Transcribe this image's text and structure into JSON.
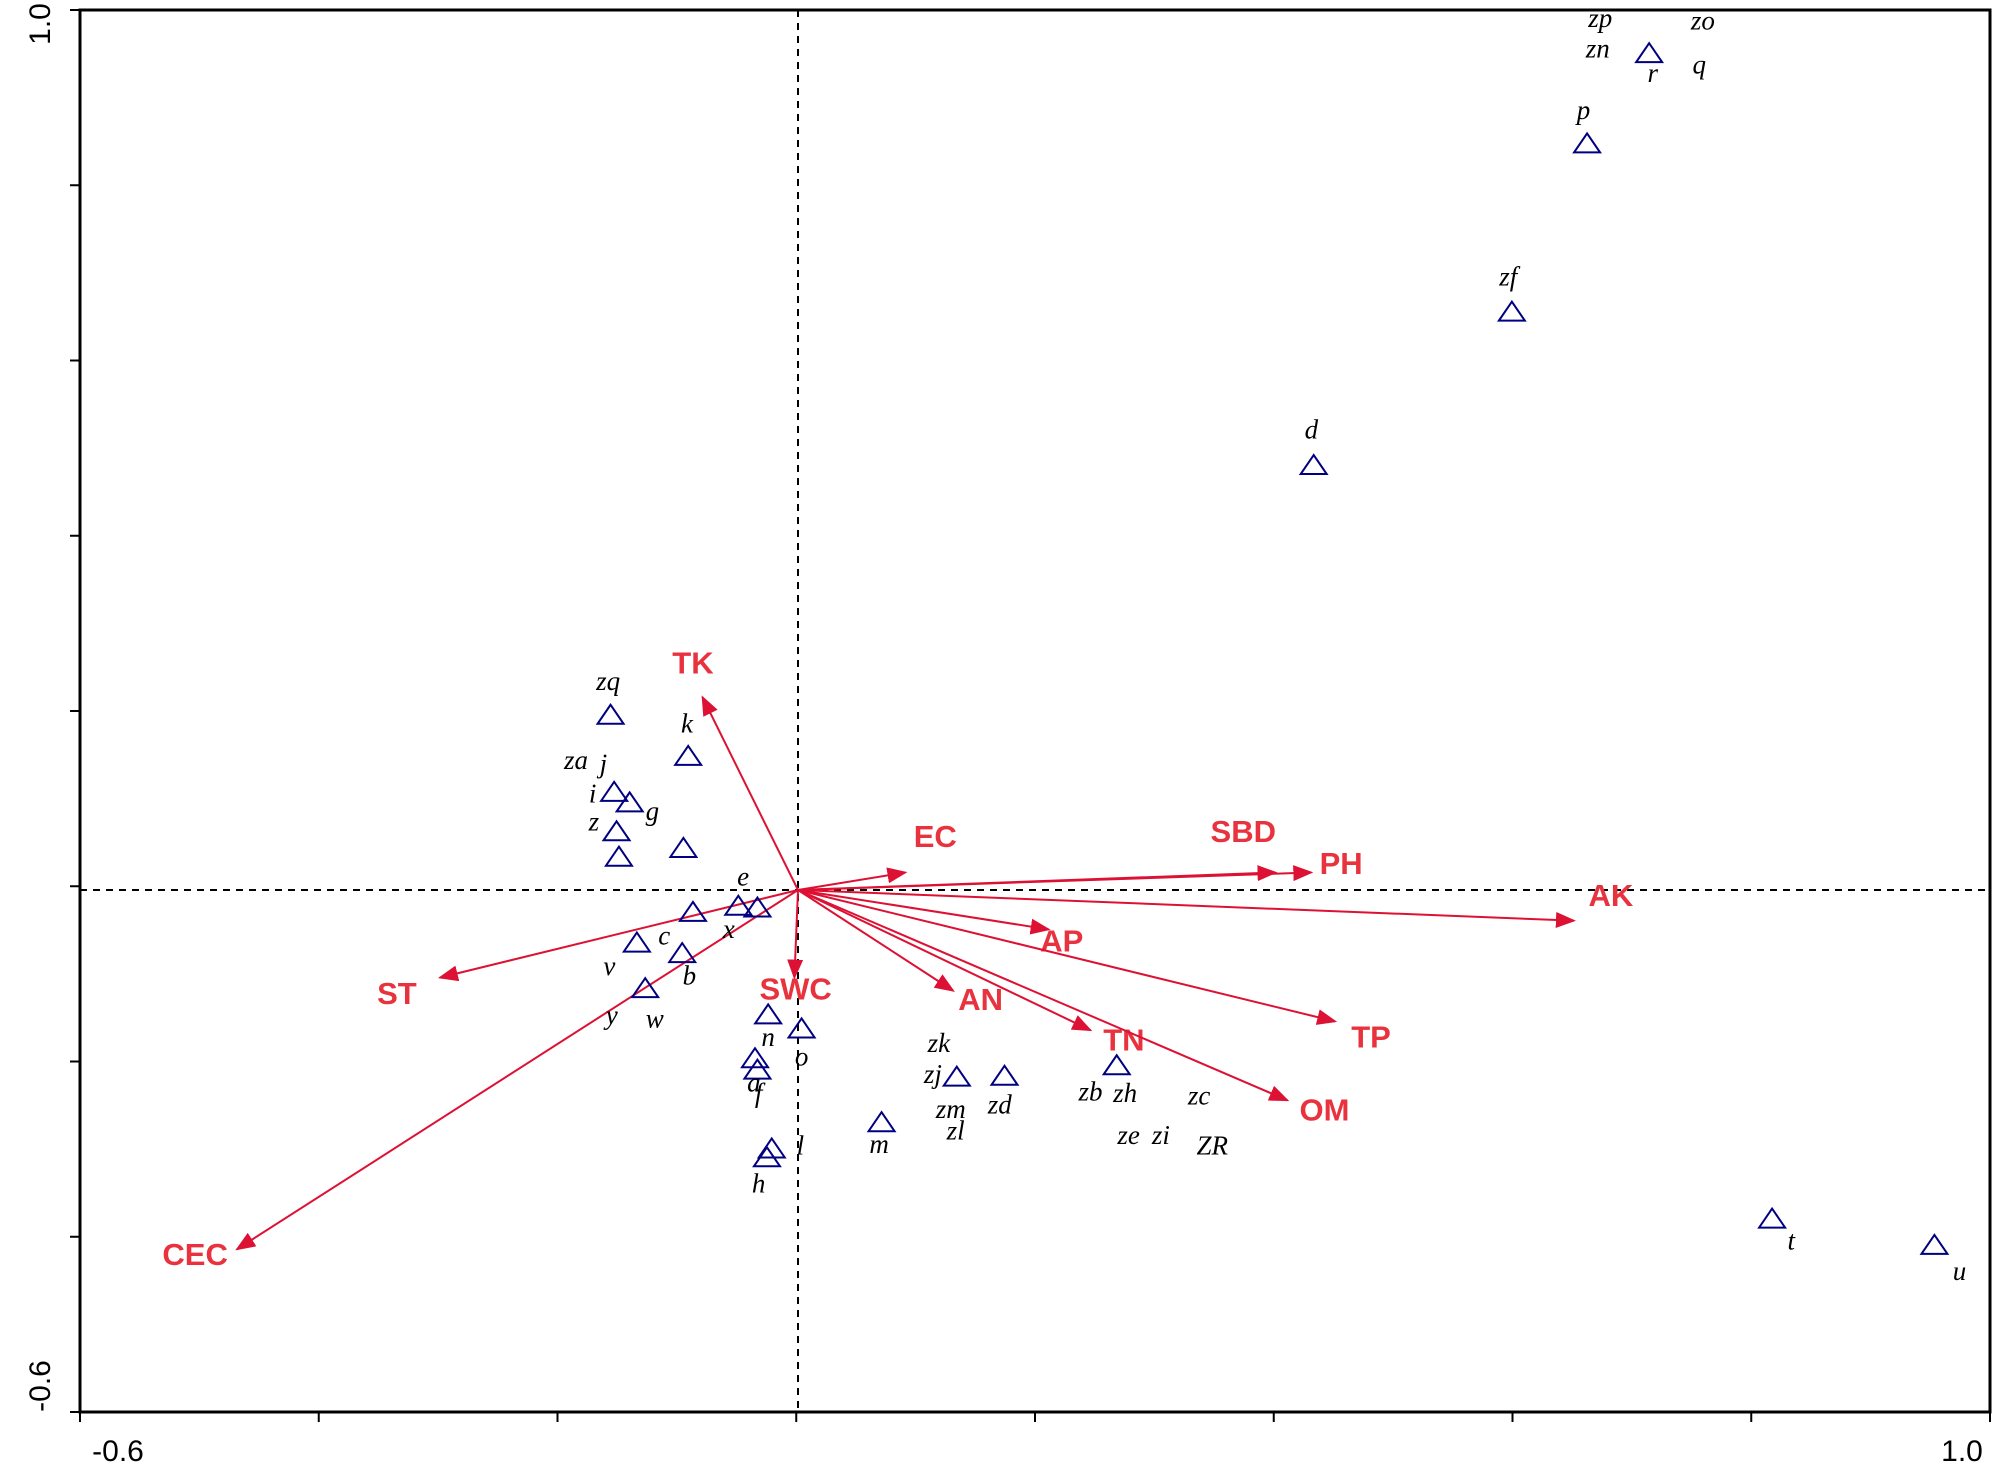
{
  "colors": {
    "arrow": "#dd1133",
    "site_marker": "#000080",
    "axis": "#000000",
    "env_label": "#e8333f"
  },
  "chart_data": {
    "type": "scatter",
    "title": "",
    "xlabel": "",
    "ylabel": "",
    "xlim": [
      -0.6,
      1.0
    ],
    "ylim": [
      -0.6,
      1.0
    ],
    "x_tick_labels": [
      "-0.6",
      "1.0"
    ],
    "y_tick_labels": [
      "1.0",
      "-0.6"
    ],
    "grid": false,
    "reference_lines": {
      "x": 0,
      "y": 0,
      "style": "dashed"
    },
    "environmental_vectors": [
      {
        "name": "TK",
        "x": -0.08,
        "y": 0.22,
        "lx": -0.088,
        "ly": 0.247
      },
      {
        "name": "EC",
        "x": 0.09,
        "y": 0.02,
        "lx": 0.115,
        "ly": 0.049
      },
      {
        "name": "SBD",
        "x": 0.4,
        "y": 0.02,
        "lx": 0.373,
        "ly": 0.055
      },
      {
        "name": "PH",
        "x": 0.43,
        "y": 0.02,
        "lx": 0.455,
        "ly": 0.018
      },
      {
        "name": "AK",
        "x": 0.65,
        "y": -0.035,
        "lx": 0.681,
        "ly": -0.018
      },
      {
        "name": "AP",
        "x": 0.21,
        "y": -0.045,
        "lx": 0.221,
        "ly": -0.07
      },
      {
        "name": "TP",
        "x": 0.45,
        "y": -0.15,
        "lx": 0.48,
        "ly": -0.18
      },
      {
        "name": "AN",
        "x": 0.13,
        "y": -0.115,
        "lx": 0.153,
        "ly": -0.137
      },
      {
        "name": "TN",
        "x": 0.245,
        "y": -0.16,
        "lx": 0.273,
        "ly": -0.183
      },
      {
        "name": "OM",
        "x": 0.41,
        "y": -0.24,
        "lx": 0.441,
        "ly": -0.263
      },
      {
        "name": "SWC",
        "x": -0.003,
        "y": -0.1,
        "lx": -0.002,
        "ly": -0.125
      },
      {
        "name": "ST",
        "x": -0.3,
        "y": -0.1,
        "lx": -0.336,
        "ly": -0.13
      },
      {
        "name": "CEC",
        "x": -0.47,
        "y": -0.41,
        "lx": -0.505,
        "ly": -0.428
      }
    ],
    "sites": [
      {
        "label": "zp",
        "x": null,
        "y": null,
        "lx": 0.672,
        "ly": 0.985
      },
      {
        "label": "zo",
        "x": null,
        "y": null,
        "lx": 0.758,
        "ly": 0.982
      },
      {
        "label": "zn",
        "x": null,
        "y": null,
        "lx": 0.67,
        "ly": 0.95
      },
      {
        "label": "r",
        "x": 0.713,
        "y": 0.955,
        "lx": 0.716,
        "ly": 0.922
      },
      {
        "label": "q",
        "x": null,
        "y": null,
        "lx": 0.755,
        "ly": 0.932
      },
      {
        "label": "p",
        "x": 0.661,
        "y": 0.852,
        "lx": 0.658,
        "ly": 0.88
      },
      {
        "label": "zf",
        "x": 0.598,
        "y": 0.66,
        "lx": 0.595,
        "ly": 0.69
      },
      {
        "label": "d",
        "x": 0.432,
        "y": 0.485,
        "lx": 0.43,
        "ly": 0.515
      },
      {
        "label": "zq",
        "x": -0.157,
        "y": 0.2,
        "lx": -0.159,
        "ly": 0.228
      },
      {
        "label": "k",
        "x": -0.092,
        "y": 0.153,
        "lx": -0.093,
        "ly": 0.18
      },
      {
        "label": "za",
        "x": null,
        "y": null,
        "lx": -0.186,
        "ly": 0.138
      },
      {
        "label": "j",
        "x": -0.154,
        "y": 0.112,
        "lx": -0.163,
        "ly": 0.134
      },
      {
        "label": "i",
        "x": null,
        "y": null,
        "lx": -0.172,
        "ly": 0.1
      },
      {
        "label": "g",
        "x": -0.141,
        "y": 0.1,
        "lx": -0.122,
        "ly": 0.08
      },
      {
        "label": "z",
        "x": -0.152,
        "y": 0.067,
        "lx": -0.171,
        "ly": 0.068
      },
      {
        "label": "",
        "x": -0.15,
        "y": 0.038,
        "lx": null,
        "ly": null
      },
      {
        "label": "",
        "x": -0.096,
        "y": 0.048,
        "lx": null,
        "ly": null
      },
      {
        "label": "e",
        "x": -0.05,
        "y": -0.018,
        "lx": -0.046,
        "ly": 0.005
      },
      {
        "label": "",
        "x": -0.034,
        "y": -0.02,
        "lx": null,
        "ly": null
      },
      {
        "label": "",
        "x": -0.088,
        "y": -0.025,
        "lx": null,
        "ly": null
      },
      {
        "label": "x",
        "x": null,
        "y": null,
        "lx": -0.058,
        "ly": -0.055
      },
      {
        "label": "c",
        "x": -0.135,
        "y": -0.06,
        "lx": -0.112,
        "ly": -0.062
      },
      {
        "label": "",
        "x": -0.097,
        "y": -0.072,
        "lx": null,
        "ly": null
      },
      {
        "label": "v",
        "x": null,
        "y": null,
        "lx": -0.158,
        "ly": -0.097
      },
      {
        "label": "b",
        "x": null,
        "y": null,
        "lx": -0.091,
        "ly": -0.108
      },
      {
        "label": "",
        "x": -0.128,
        "y": -0.112,
        "lx": null,
        "ly": null
      },
      {
        "label": "y",
        "x": null,
        "y": null,
        "lx": -0.156,
        "ly": -0.153
      },
      {
        "label": "w",
        "x": null,
        "y": null,
        "lx": -0.12,
        "ly": -0.157
      },
      {
        "label": "",
        "x": -0.025,
        "y": -0.142,
        "lx": null,
        "ly": null
      },
      {
        "label": "",
        "x": 0.003,
        "y": -0.158,
        "lx": null,
        "ly": null
      },
      {
        "label": "n",
        "x": null,
        "y": null,
        "lx": -0.025,
        "ly": -0.178
      },
      {
        "label": "o",
        "x": null,
        "y": null,
        "lx": 0.003,
        "ly": -0.2
      },
      {
        "label": "",
        "x": -0.036,
        "y": -0.192,
        "lx": null,
        "ly": null
      },
      {
        "label": "",
        "x": -0.034,
        "y": -0.205,
        "lx": null,
        "ly": null
      },
      {
        "label": "a",
        "x": null,
        "y": null,
        "lx": -0.037,
        "ly": -0.23
      },
      {
        "label": "f",
        "x": null,
        "y": null,
        "lx": -0.033,
        "ly": -0.242
      },
      {
        "label": "",
        "x": -0.022,
        "y": -0.295,
        "lx": null,
        "ly": null
      },
      {
        "label": "",
        "x": -0.026,
        "y": -0.305,
        "lx": null,
        "ly": null
      },
      {
        "label": "l",
        "x": null,
        "y": null,
        "lx": 0.002,
        "ly": -0.302
      },
      {
        "label": "h",
        "x": null,
        "y": null,
        "lx": -0.033,
        "ly": -0.345
      },
      {
        "label": "",
        "x": 0.07,
        "y": -0.265,
        "lx": null,
        "ly": null
      },
      {
        "label": "m",
        "x": null,
        "y": null,
        "lx": 0.068,
        "ly": -0.3
      },
      {
        "label": "zk",
        "x": null,
        "y": null,
        "lx": 0.118,
        "ly": -0.185
      },
      {
        "label": "zj",
        "x": 0.133,
        "y": -0.213,
        "lx": 0.113,
        "ly": -0.22
      },
      {
        "label": "",
        "x": 0.173,
        "y": -0.212,
        "lx": null,
        "ly": null
      },
      {
        "label": "zm",
        "x": null,
        "y": null,
        "lx": 0.128,
        "ly": -0.26
      },
      {
        "label": "zd",
        "x": null,
        "y": null,
        "lx": 0.169,
        "ly": -0.255
      },
      {
        "label": "zl",
        "x": null,
        "y": null,
        "lx": 0.132,
        "ly": -0.285
      },
      {
        "label": "zb",
        "x": 0.267,
        "y": -0.2,
        "lx": 0.245,
        "ly": -0.24
      },
      {
        "label": "zh",
        "x": null,
        "y": null,
        "lx": 0.274,
        "ly": -0.242
      },
      {
        "label": "zc",
        "x": null,
        "y": null,
        "lx": 0.336,
        "ly": -0.245
      },
      {
        "label": "ze",
        "x": null,
        "y": null,
        "lx": 0.277,
        "ly": -0.29
      },
      {
        "label": "zi",
        "x": null,
        "y": null,
        "lx": 0.304,
        "ly": -0.29
      },
      {
        "label": "ZR",
        "x": null,
        "y": null,
        "lx": 0.347,
        "ly": -0.302
      },
      {
        "label": "t",
        "x": 0.816,
        "y": -0.375,
        "lx": 0.832,
        "ly": -0.41
      },
      {
        "label": "u",
        "x": 0.952,
        "y": -0.405,
        "lx": 0.973,
        "ly": -0.445
      }
    ]
  }
}
